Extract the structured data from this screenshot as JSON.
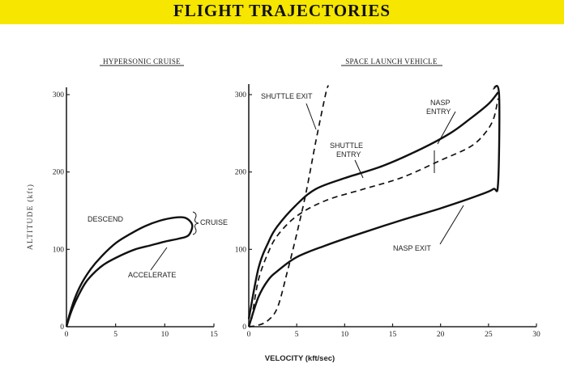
{
  "title": "FLIGHT TRAJECTORIES",
  "chart_data": [
    {
      "type": "line",
      "title": "HYPERSONIC CRUISE",
      "ylabel": "ALTITUDE  (kft)",
      "xticks": [
        0,
        5,
        10,
        15
      ],
      "yticks": [
        0,
        100,
        200,
        300
      ],
      "xlim": [
        0,
        15
      ],
      "ylim": [
        0,
        300
      ],
      "series": [
        {
          "name": "",
          "line": "solid",
          "points": [
            [
              0,
              0
            ],
            [
              0.3,
              15
            ],
            [
              0.8,
              35
            ],
            [
              1.5,
              55
            ],
            [
              2.5,
              75
            ],
            [
              3.5,
              90
            ],
            [
              5,
              108
            ],
            [
              6.5,
              120
            ],
            [
              8,
              130
            ],
            [
              9.5,
              137
            ],
            [
              11,
              141
            ],
            [
              12,
              141
            ],
            [
              12.6,
              136
            ],
            [
              12.8,
              129
            ],
            [
              12.4,
              118
            ],
            [
              11.5,
              114
            ],
            [
              10,
              110
            ],
            [
              8.5,
              105
            ],
            [
              7,
              100
            ],
            [
              5.5,
              92
            ],
            [
              4,
              82
            ],
            [
              3,
              72
            ],
            [
              2,
              58
            ],
            [
              1.2,
              40
            ],
            [
              0.5,
              20
            ],
            [
              0,
              0
            ]
          ]
        }
      ],
      "annotations": [
        "DESCEND",
        "CRUISE",
        "ACCELERATE"
      ]
    },
    {
      "type": "line",
      "title": "SPACE LAUNCH VEHICLE",
      "xlabel": "VELOCITY   (kft/sec)",
      "xticks": [
        0,
        5,
        10,
        15,
        20,
        25,
        30
      ],
      "yticks": [
        0,
        100,
        200,
        300
      ],
      "xlim": [
        0,
        30
      ],
      "ylim": [
        0,
        300
      ],
      "series": [
        {
          "name": "SHUTTLE EXIT",
          "line": "dashed",
          "points": [
            [
              0,
              0
            ],
            [
              1,
              2
            ],
            [
              2,
              8
            ],
            [
              3,
              25
            ],
            [
              4,
              70
            ],
            [
              5,
              120
            ],
            [
              6,
              175
            ],
            [
              7,
              240
            ],
            [
              8,
              300
            ],
            [
              8.3,
              312
            ]
          ]
        },
        {
          "name": "SHUTTLE ENTRY",
          "line": "dashed",
          "points": [
            [
              0.3,
              10
            ],
            [
              1,
              60
            ],
            [
              2,
              95
            ],
            [
              3,
              118
            ],
            [
              5,
              143
            ],
            [
              8,
              163
            ],
            [
              12,
              178
            ],
            [
              16,
              193
            ],
            [
              20,
              215
            ],
            [
              23,
              232
            ],
            [
              24.5,
              248
            ],
            [
              25.5,
              268
            ],
            [
              26,
              295
            ]
          ]
        },
        {
          "name": "NASP ENTRY",
          "line": "solid",
          "points": [
            [
              0,
              10
            ],
            [
              1,
              75
            ],
            [
              2,
              108
            ],
            [
              3,
              130
            ],
            [
              5,
              158
            ],
            [
              7,
              178
            ],
            [
              10,
              192
            ],
            [
              14,
              208
            ],
            [
              18,
              230
            ],
            [
              21,
              250
            ],
            [
              23,
              268
            ],
            [
              25,
              288
            ],
            [
              26,
              303
            ]
          ]
        },
        {
          "name": "NASP EXIT",
          "line": "solid",
          "points": [
            [
              0,
              0
            ],
            [
              1,
              38
            ],
            [
              2,
              60
            ],
            [
              3,
              72
            ],
            [
              5,
              90
            ],
            [
              8,
              105
            ],
            [
              12,
              122
            ],
            [
              16,
              138
            ],
            [
              20,
              153
            ],
            [
              24,
              170
            ],
            [
              25.5,
              178
            ],
            [
              26,
              186
            ],
            [
              26.1,
              300
            ],
            [
              25.5,
              308
            ]
          ]
        }
      ],
      "annotations": [
        "SHUTTLE EXIT",
        "SHUTTLE ENTRY",
        "NASP ENTRY",
        "NASP EXIT"
      ]
    }
  ],
  "labels": {
    "left_title": "HYPERSONIC CRUISE",
    "right_title": "SPACE LAUNCH VEHICLE",
    "ylabel": "ALTITUDE  (kft)",
    "xlabel": "VELOCITY   (kft/sec)",
    "descend": "DESCEND",
    "cruise": "CRUISE",
    "accelerate": "ACCELERATE",
    "shuttle_exit": "SHUTTLE EXIT",
    "shuttle_entry_1": "SHUTTLE",
    "shuttle_entry_2": "ENTRY",
    "nasp_entry_1": "NASP",
    "nasp_entry_2": "ENTRY",
    "nasp_exit": "NASP EXIT"
  }
}
